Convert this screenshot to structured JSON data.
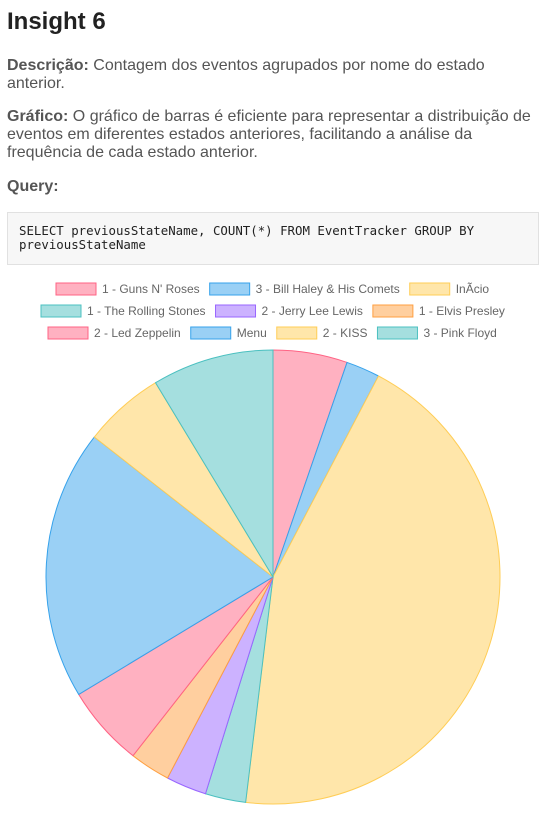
{
  "title": "Insight 6",
  "description_label": "Descrição:",
  "description_text": "Contagem dos eventos agrupados por nome do estado anterior.",
  "chart_label": "Gráfico:",
  "chart_text": "O gráfico de barras é eficiente para representar a distribuição de eventos em diferentes estados anteriores, facilitando a análise da frequência de cada estado anterior.",
  "query_label": "Query:",
  "query_code": "SELECT previousStateName, COUNT(*) FROM EventTracker GROUP BY previousStateName",
  "chart_data": {
    "type": "pie",
    "categories": [
      "1 - Guns N' Roses",
      "3 - Bill Haley & His Comets",
      "InÃcio",
      "1 - The Rolling Stones",
      "2 - Jerry Lee Lewis",
      "1 - Elvis Presley",
      "2 - Led Zeppelin",
      "Menu",
      "2 - KISS",
      "3 - Pink Floyd"
    ],
    "values": [
      5.5,
      2.5,
      46,
      3,
      3,
      3,
      6,
      20,
      6,
      9
    ],
    "colors": [
      "#ffb1c1",
      "#9ad0f5",
      "#ffe6aa",
      "#a5dfdf",
      "#ccb2ff",
      "#ffcf9f",
      "#ffb1c1",
      "#9ad0f5",
      "#ffe6aa",
      "#a5dfdf"
    ],
    "borders": [
      "#ff6384",
      "#36a2eb",
      "#ffcd56",
      "#4bc0c0",
      "#9966ff",
      "#ff9f40",
      "#ff6384",
      "#36a2eb",
      "#ffcd56",
      "#4bc0c0"
    ],
    "legend_position": "top"
  }
}
